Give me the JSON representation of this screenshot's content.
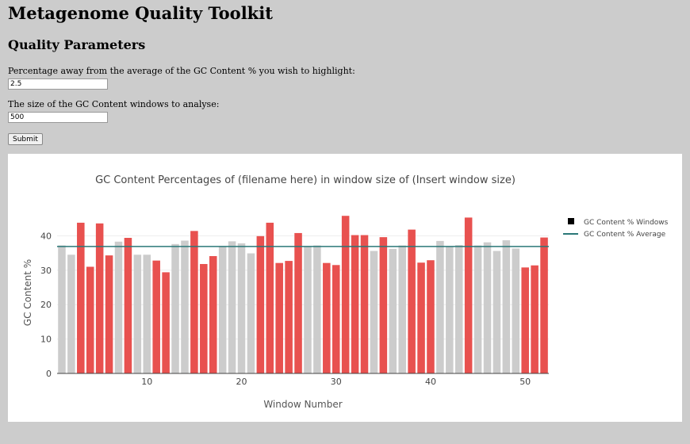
{
  "page": {
    "title": "Metagenome Quality Toolkit",
    "subtitle": "Quality Parameters"
  },
  "form": {
    "highlight_label": "Percentage away from the average of the GC Content % you wish to highlight:",
    "highlight_value": "2.5",
    "window_label": "The size of the GC Content windows to analyse:",
    "window_value": "500",
    "submit_label": "Submit"
  },
  "colors": {
    "highlight": "#e8514f",
    "normal": "#cccccc",
    "average_line": "#2a7777"
  },
  "chart_data": {
    "type": "bar",
    "title": "GC Content Percentages of (filename here) in window size of (Insert window size)",
    "xlabel": "Window Number",
    "ylabel": "GC Content %",
    "x": [
      1,
      2,
      3,
      4,
      5,
      6,
      7,
      8,
      9,
      10,
      11,
      12,
      13,
      14,
      15,
      16,
      17,
      18,
      19,
      20,
      21,
      22,
      23,
      24,
      25,
      26,
      27,
      28,
      29,
      30,
      31,
      32,
      33,
      34,
      35,
      36,
      37,
      38,
      39,
      40,
      41,
      42,
      43,
      44,
      45,
      46,
      47,
      48,
      49,
      50,
      51,
      52
    ],
    "values": [
      37.2,
      34.5,
      43.8,
      31.0,
      43.6,
      34.3,
      38.3,
      39.4,
      34.5,
      34.5,
      32.8,
      29.4,
      37.6,
      38.6,
      41.4,
      31.8,
      34.1,
      37.0,
      38.4,
      37.8,
      34.9,
      39.9,
      43.8,
      32.1,
      32.7,
      40.8,
      37.0,
      37.2,
      32.1,
      31.5,
      45.8,
      40.2,
      40.2,
      35.6,
      39.6,
      36.2,
      37.2,
      41.8,
      32.2,
      32.9,
      38.5,
      36.9,
      37.3,
      45.3,
      37.2,
      38.1,
      35.6,
      38.7,
      36.3,
      30.8,
      31.4,
      39.5
    ],
    "highlighted": [
      false,
      false,
      true,
      true,
      true,
      true,
      false,
      true,
      false,
      false,
      true,
      true,
      false,
      false,
      true,
      true,
      true,
      false,
      false,
      false,
      false,
      true,
      true,
      true,
      true,
      true,
      false,
      false,
      true,
      true,
      true,
      true,
      true,
      false,
      true,
      false,
      false,
      true,
      true,
      true,
      false,
      false,
      false,
      true,
      false,
      false,
      false,
      false,
      false,
      true,
      true,
      true
    ],
    "average": 36.9,
    "ylim": [
      0,
      50
    ],
    "xlim": [
      0.5,
      52.5
    ],
    "yticks": [
      0,
      10,
      20,
      30,
      40
    ],
    "xticks": [
      10,
      20,
      30,
      40,
      50
    ],
    "legend": [
      {
        "name": "GC Content % Windows",
        "kind": "marker"
      },
      {
        "name": "GC Content % Average",
        "kind": "line"
      }
    ],
    "legend_position": "top-right"
  }
}
